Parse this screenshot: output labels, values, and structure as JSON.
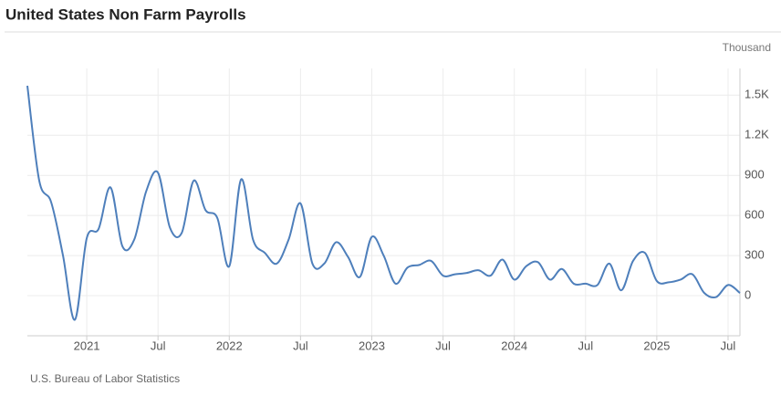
{
  "chart_data": {
    "type": "line",
    "title": "United States Non Farm Payrolls",
    "unit_label": "Thousand",
    "source": "U.S. Bureau of Labor Statistics",
    "x": [
      "2020-08",
      "2020-09",
      "2020-10",
      "2020-11",
      "2020-12",
      "2021-01",
      "2021-02",
      "2021-03",
      "2021-04",
      "2021-05",
      "2021-06",
      "2021-07",
      "2021-08",
      "2021-09",
      "2021-10",
      "2021-11",
      "2021-12",
      "2022-01",
      "2022-02",
      "2022-03",
      "2022-04",
      "2022-05",
      "2022-06",
      "2022-07",
      "2022-08",
      "2022-09",
      "2022-10",
      "2022-11",
      "2022-12",
      "2023-01",
      "2023-02",
      "2023-03",
      "2023-04",
      "2023-05",
      "2023-06",
      "2023-07",
      "2023-08",
      "2023-09",
      "2023-10",
      "2023-11",
      "2023-12",
      "2024-01",
      "2024-02",
      "2024-03",
      "2024-04",
      "2024-05",
      "2024-06",
      "2024-07",
      "2024-08",
      "2024-09",
      "2024-10",
      "2024-11",
      "2024-12",
      "2025-01",
      "2025-02",
      "2025-03",
      "2025-04",
      "2025-05",
      "2025-06",
      "2025-07",
      "2025-08"
    ],
    "series": [
      {
        "name": "Non Farm Payrolls",
        "color": "#4e7fbb",
        "values": [
          1570,
          860,
          700,
          300,
          -180,
          430,
          500,
          810,
          370,
          420,
          780,
          920,
          510,
          470,
          860,
          640,
          580,
          220,
          870,
          420,
          320,
          240,
          420,
          690,
          240,
          240,
          400,
          290,
          140,
          440,
          300,
          90,
          210,
          230,
          260,
          150,
          160,
          170,
          190,
          150,
          270,
          120,
          220,
          250,
          120,
          200,
          90,
          90,
          80,
          240,
          40,
          260,
          320,
          110,
          100,
          120,
          160,
          20,
          -10,
          80,
          20
        ]
      }
    ],
    "xlim": [
      "2020-08",
      "2025-08"
    ],
    "xticks": [
      {
        "value": "2021-01",
        "label": "2021"
      },
      {
        "value": "2021-07",
        "label": "Jul"
      },
      {
        "value": "2022-01",
        "label": "2022"
      },
      {
        "value": "2022-07",
        "label": "Jul"
      },
      {
        "value": "2023-01",
        "label": "2023"
      },
      {
        "value": "2023-07",
        "label": "Jul"
      },
      {
        "value": "2024-01",
        "label": "2024"
      },
      {
        "value": "2024-07",
        "label": "Jul"
      },
      {
        "value": "2025-01",
        "label": "2025"
      },
      {
        "value": "2025-07",
        "label": "Jul"
      }
    ],
    "ylim": [
      -300,
      1700
    ],
    "yticks": [
      0,
      300,
      600,
      900,
      {
        "value": 1200,
        "label": "1.2K"
      },
      {
        "value": 1500,
        "label": "1.5K"
      }
    ],
    "grid": true
  }
}
